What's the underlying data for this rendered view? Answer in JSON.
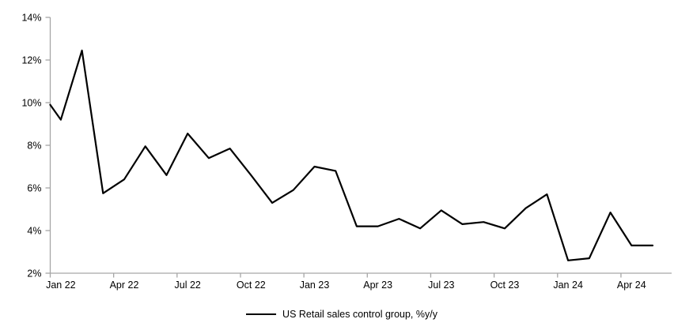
{
  "chart_data": {
    "type": "line",
    "title": "",
    "xlabel": "",
    "ylabel": "",
    "grid": false,
    "legend_position": "bottom-center",
    "ylim": [
      2,
      14
    ],
    "y_tick_labels": [
      "2%",
      "4%",
      "6%",
      "8%",
      "10%",
      "12%",
      "14%"
    ],
    "x_tick_labels": [
      "Jan 22",
      "Apr 22",
      "Jul 22",
      "Oct 22",
      "Jan 23",
      "Apr 23",
      "Jul 23",
      "Oct 23",
      "Jan 24",
      "Apr 24"
    ],
    "x": [
      "Jan 22",
      "Feb 22",
      "Mar 22",
      "Apr 22",
      "May 22",
      "Jun 22",
      "Jul 22",
      "Aug 22",
      "Sep 22",
      "Oct 22",
      "Nov 22",
      "Dec 22",
      "Jan 23",
      "Feb 23",
      "Mar 23",
      "Apr 23",
      "May 23",
      "Jun 23",
      "Jul 23",
      "Aug 23",
      "Sep 23",
      "Oct 23",
      "Nov 23",
      "Dec 23",
      "Jan 24",
      "Feb 24",
      "Mar 24",
      "Apr 24",
      "May 24"
    ],
    "series": [
      {
        "name": "US Retail sales control group, %y/y",
        "color": "#000000",
        "lead_in_value_at_axis": 9.9,
        "values": [
          9.2,
          12.45,
          5.75,
          6.4,
          7.95,
          6.6,
          8.55,
          7.4,
          7.85,
          6.6,
          5.3,
          5.9,
          7.0,
          6.8,
          4.2,
          4.2,
          4.55,
          4.1,
          4.95,
          4.3,
          4.4,
          4.1,
          5.05,
          5.7,
          2.6,
          2.7,
          4.85,
          3.3,
          3.3
        ]
      }
    ]
  },
  "legend": {
    "label": "US Retail sales control group, %y/y"
  },
  "colors": {
    "line": "#000000",
    "axis": "#a6a6a6",
    "text": "#000000",
    "background": "#ffffff"
  }
}
